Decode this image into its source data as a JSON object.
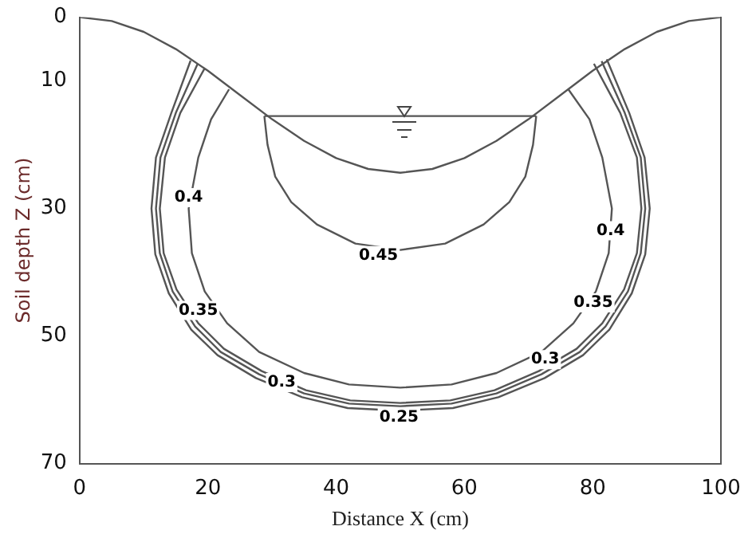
{
  "chart_data": {
    "type": "line",
    "xlabel": "Distance X (cm)",
    "ylabel": "Soil depth Z (cm)",
    "xlim": [
      0,
      100
    ],
    "xticks": [
      0,
      20,
      40,
      60,
      80,
      100
    ],
    "ylim": [
      70,
      0
    ],
    "yticks": [
      0,
      10,
      30,
      50,
      70
    ],
    "grid": false,
    "legend": false,
    "marker": "none",
    "line_style": "solid",
    "series": [
      {
        "color": "#555555",
        "x": [
          0,
          5,
          10,
          15,
          20,
          25,
          30,
          35,
          40,
          45,
          50,
          55,
          60,
          65,
          70,
          75,
          80,
          85,
          90,
          95,
          100
        ],
        "values": [
          0,
          0.6,
          2.3,
          5,
          8.4,
          12.2,
          16,
          19.4,
          22.1,
          23.8,
          24.4,
          23.8,
          22.1,
          19.4,
          16,
          12.2,
          8.4,
          5,
          2.3,
          0.6,
          0
        ]
      },
      {
        "color": "#555555",
        "x": [
          28.8,
          71.2
        ],
        "values": [
          15.5,
          15.5
        ]
      },
      {
        "color": "#555555",
        "x": [
          28.8,
          29.3,
          30.5,
          33,
          37,
          43,
          50,
          57,
          63,
          67,
          69.5,
          70.7,
          71.2
        ],
        "values": [
          15.5,
          20,
          25,
          29,
          32.5,
          35.5,
          36.5,
          35.5,
          32.5,
          29,
          25,
          20,
          15.5
        ]
      },
      {
        "color": "#555555",
        "x": [
          23.3,
          20.5,
          18.5,
          17,
          17.5,
          19.5,
          23,
          28,
          35,
          42,
          50,
          58,
          65,
          72,
          77,
          80.5,
          82.5,
          83,
          81.5,
          79.5,
          76.2
        ],
        "values": [
          11.3,
          16,
          22,
          30,
          37,
          43,
          48,
          52.5,
          55.8,
          57.6,
          58.1,
          57.6,
          55.8,
          52.5,
          48,
          43,
          37,
          30,
          22,
          16,
          11.3
        ]
      },
      {
        "color": "#555555",
        "x": [
          19.5,
          15.7,
          13.3,
          12.5,
          13.1,
          15.1,
          18.5,
          22.5,
          28.4,
          35.3,
          42.2,
          50,
          57.8,
          64.7,
          71.6,
          77.5,
          81.5,
          84.9,
          86.9,
          87.6,
          86.9,
          84.3,
          80.2
        ],
        "values": [
          8,
          15,
          22,
          30,
          37,
          42.7,
          48,
          52,
          55.5,
          58.5,
          60.1,
          60.5,
          60.1,
          58.5,
          55.5,
          52,
          48,
          42.7,
          37,
          30,
          22,
          15,
          7.3
        ]
      },
      {
        "color": "#555555",
        "x": [
          18.4,
          15,
          12.6,
          11.9,
          12.5,
          14.5,
          18,
          22,
          28,
          35,
          42,
          50,
          58,
          65,
          72,
          78,
          82,
          85.5,
          87.5,
          88.2,
          87.5,
          85,
          81.4
        ],
        "values": [
          7.3,
          15,
          22,
          30,
          37,
          43,
          48.5,
          52.5,
          56,
          59,
          60.6,
          61,
          60.6,
          59,
          56,
          52.5,
          48.5,
          43,
          37,
          30,
          22,
          15,
          6.9
        ]
      },
      {
        "color": "#555555",
        "x": [
          17.3,
          14.3,
          11.9,
          11.2,
          11.8,
          13.9,
          17.4,
          21.5,
          27.5,
          34.7,
          41.8,
          50,
          58.2,
          65.3,
          72.5,
          78.5,
          82.6,
          86.1,
          88.2,
          88.9,
          88.1,
          85.7,
          82.2
        ],
        "values": [
          6.8,
          15,
          22,
          30,
          37.2,
          43.3,
          49,
          53,
          56.6,
          59.6,
          61.3,
          61.7,
          61.3,
          59.6,
          56.6,
          53,
          49,
          43.3,
          37.2,
          30,
          22,
          15,
          6.6
        ]
      }
    ],
    "annotations": [
      {
        "text": "0.4",
        "x": 17,
        "y": 28.3
      },
      {
        "text": "0.4",
        "x": 82.8,
        "y": 33.5
      },
      {
        "text": "0.45",
        "x": 46.6,
        "y": 37.4
      },
      {
        "text": "0.35",
        "x": 18.5,
        "y": 46
      },
      {
        "text": "0.35",
        "x": 80.1,
        "y": 44.8
      },
      {
        "text": "0.3",
        "x": 31.5,
        "y": 57.3
      },
      {
        "text": "0.3",
        "x": 72.6,
        "y": 53.7
      },
      {
        "text": "0.25",
        "x": 49.8,
        "y": 62.8
      }
    ]
  }
}
